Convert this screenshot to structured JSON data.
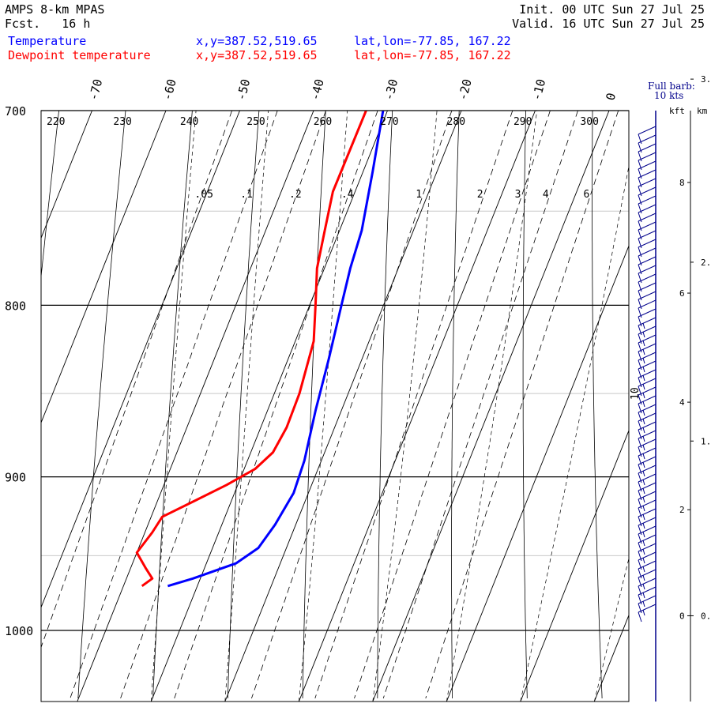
{
  "header": {
    "model": "AMPS 8-km MPAS",
    "fcst": "Fcst.   16 h",
    "init": "Init. 00 UTC Sun 27 Jul 25",
    "valid": "Valid. 16 UTC Sun 27 Jul 25",
    "series": [
      {
        "name": "Temperature",
        "xy": "x,y=387.52,519.65",
        "latlon": "lat,lon=-77.85, 167.22",
        "color": "#0000ff"
      },
      {
        "name": "Dewpoint temperature",
        "xy": "x,y=387.52,519.65",
        "latlon": "lat,lon=-77.85, 167.22",
        "color": "#ff0000"
      }
    ]
  },
  "barb_legend": {
    "line1": "Full barb:",
    "line2": "10 kts"
  },
  "height_axis": {
    "units": [
      "kft",
      "km"
    ],
    "kft_ticks": [
      0,
      2,
      4,
      6,
      8
    ],
    "km_ticks": [
      0,
      1,
      2,
      3
    ],
    "km_labels": [
      "0.",
      "1.",
      "2.",
      "3."
    ]
  },
  "chart_data": {
    "type": "skew-t",
    "pressure_levels": [
      700,
      800,
      900,
      1000
    ],
    "pressure_range": [
      700,
      1050
    ],
    "temperature_isotherms": [
      -70,
      -60,
      -50,
      -40,
      -30,
      -20,
      -10,
      0
    ],
    "potential_temperature_labels": [
      220,
      230,
      240,
      250,
      260,
      270,
      280,
      290,
      300
    ],
    "mixing_ratio_labels": [
      ".05",
      ".1",
      ".2",
      ".4",
      "1",
      "2",
      "3",
      "4",
      "6"
    ],
    "moist_adiabat_label": "10",
    "series": [
      {
        "name": "Temperature",
        "color": "#0000ff",
        "points": [
          {
            "p": 700,
            "t": -30.6
          },
          {
            "p": 730,
            "t": -28.7
          },
          {
            "p": 760,
            "t": -27.0
          },
          {
            "p": 780,
            "t": -26.5
          },
          {
            "p": 800,
            "t": -25.7
          },
          {
            "p": 830,
            "t": -24.5
          },
          {
            "p": 860,
            "t": -23.5
          },
          {
            "p": 890,
            "t": -22.3
          },
          {
            "p": 910,
            "t": -22.0
          },
          {
            "p": 930,
            "t": -22.8
          },
          {
            "p": 945,
            "t": -23.8
          },
          {
            "p": 955,
            "t": -26.0
          },
          {
            "p": 965,
            "t": -31.0
          },
          {
            "p": 970,
            "t": -34.0
          }
        ]
      },
      {
        "name": "Dewpoint temperature",
        "color": "#ff0000",
        "points": [
          {
            "p": 700,
            "t": -32.9
          },
          {
            "p": 740,
            "t": -33.0
          },
          {
            "p": 760,
            "t": -32.0
          },
          {
            "p": 780,
            "t": -31.0
          },
          {
            "p": 800,
            "t": -29.2
          },
          {
            "p": 820,
            "t": -27.5
          },
          {
            "p": 850,
            "t": -26.6
          },
          {
            "p": 870,
            "t": -26.5
          },
          {
            "p": 885,
            "t": -27.0
          },
          {
            "p": 895,
            "t": -28.5
          },
          {
            "p": 905,
            "t": -31.5
          },
          {
            "p": 915,
            "t": -35.0
          },
          {
            "p": 925,
            "t": -38.5
          },
          {
            "p": 935,
            "t": -39.0
          },
          {
            "p": 948,
            "t": -40.0
          },
          {
            "p": 958,
            "t": -38.0
          },
          {
            "p": 965,
            "t": -36.5
          },
          {
            "p": 970,
            "t": -37.5
          }
        ]
      }
    ],
    "wind_profile": {
      "units": "kts",
      "direction": "westerly",
      "speed_range_kts": [
        10,
        20
      ]
    }
  },
  "colors": {
    "temperature": "#0000ff",
    "dewpoint": "#ff0000",
    "barbs": "#00008b",
    "grid": "#000000",
    "guide": "#c8c8c8"
  }
}
